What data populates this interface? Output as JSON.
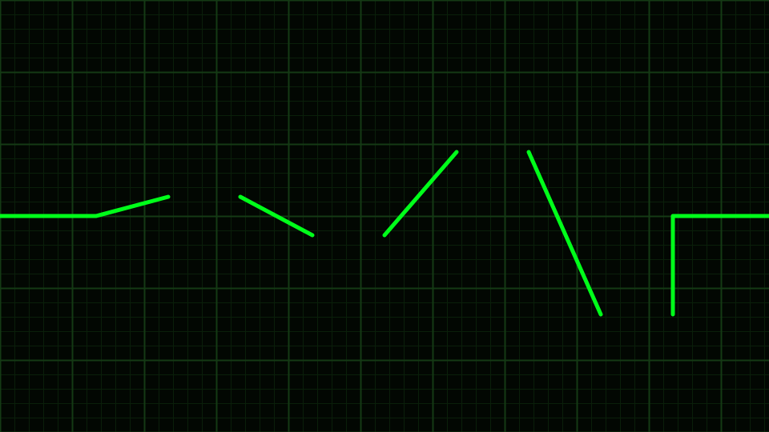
{
  "theme": {
    "background": "#020702",
    "grid_minor_color": "#0a1f0a",
    "grid_major_color": "#143a14",
    "trace_color": "#00ff1a"
  },
  "trace": {
    "segment_count": 7,
    "description_name": "waveform-segments"
  }
}
